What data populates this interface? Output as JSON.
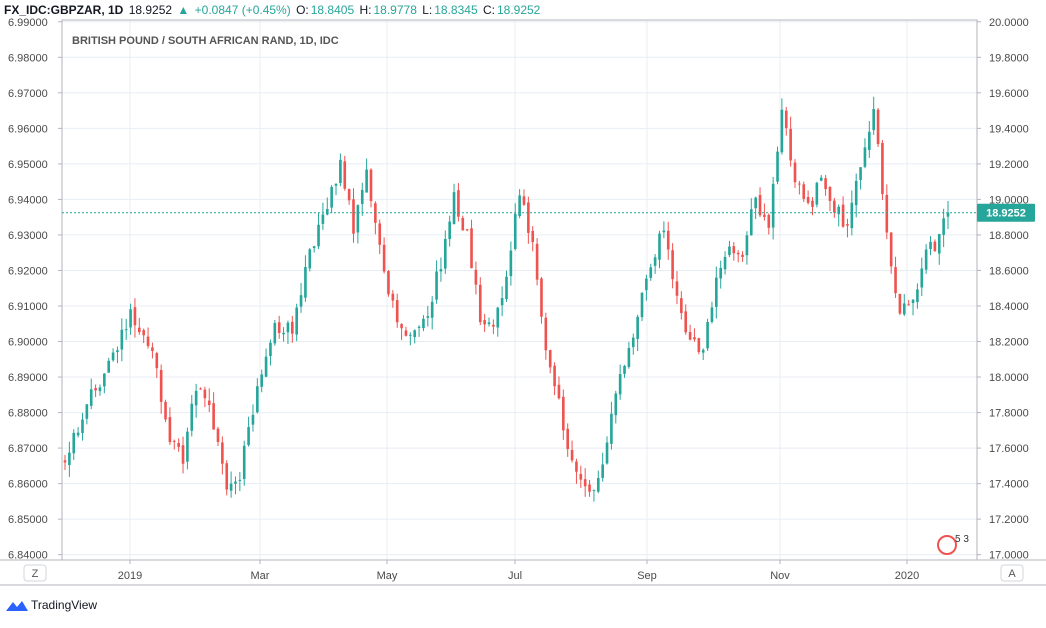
{
  "header": {
    "symbol": "FX_IDC:GBPZAR, 1D",
    "last": "18.9252",
    "change": "+0.0847 (+0.45%)",
    "open_label": "O:",
    "open": "18.8405",
    "high_label": "H:",
    "high": "18.9778",
    "low_label": "L:",
    "low": "18.8345",
    "close_label": "C:",
    "close": "18.9252",
    "up_icon": "triangle-up-icon"
  },
  "chart_data": {
    "type": "candlestick",
    "title": "BRITISH POUND / SOUTH AFRICAN RAND, 1D, IDC",
    "x_ticks": [
      "2019",
      "Mar",
      "May",
      "Jul",
      "Sep",
      "Nov",
      "2020"
    ],
    "left_axis": {
      "range": [
        6.8385,
        6.9905
      ],
      "ticks": [
        "6.99000",
        "6.98000",
        "6.97000",
        "6.96000",
        "6.95000",
        "6.94000",
        "6.93000",
        "6.92000",
        "6.91000",
        "6.90000",
        "6.89000",
        "6.88000",
        "6.87000",
        "6.86000",
        "6.85000",
        "6.84000"
      ]
    },
    "right_axis": {
      "range": [
        16.97,
        20.01
      ],
      "ticks": [
        "20.0000",
        "19.8000",
        "19.6000",
        "19.4000",
        "19.2000",
        "19.0000",
        "18.8000",
        "18.6000",
        "18.4000",
        "18.2000",
        "18.0000",
        "17.8000",
        "17.6000",
        "17.4000",
        "17.2000",
        "17.0000"
      ]
    },
    "last_price": 18.9252,
    "last_price_label": "18.9252",
    "close_path": [
      [
        0,
        17.55
      ],
      [
        5,
        17.85
      ],
      [
        10,
        18.05
      ],
      [
        15,
        18.35
      ],
      [
        20,
        18.15
      ],
      [
        24,
        17.65
      ],
      [
        27,
        17.55
      ],
      [
        30,
        17.95
      ],
      [
        33,
        17.85
      ],
      [
        37,
        17.35
      ],
      [
        40,
        17.45
      ],
      [
        44,
        17.95
      ],
      [
        48,
        18.3
      ],
      [
        52,
        18.25
      ],
      [
        56,
        18.7
      ],
      [
        60,
        18.95
      ],
      [
        63,
        19.2
      ],
      [
        66,
        18.85
      ],
      [
        69,
        19.15
      ],
      [
        72,
        18.7
      ],
      [
        76,
        18.3
      ],
      [
        80,
        18.25
      ],
      [
        83,
        18.35
      ],
      [
        86,
        18.65
      ],
      [
        89,
        19.0
      ],
      [
        92,
        18.8
      ],
      [
        95,
        18.35
      ],
      [
        98,
        18.25
      ],
      [
        101,
        18.6
      ],
      [
        104,
        19.05
      ],
      [
        107,
        18.75
      ],
      [
        110,
        18.15
      ],
      [
        113,
        17.85
      ],
      [
        116,
        17.5
      ],
      [
        119,
        17.35
      ],
      [
        122,
        17.4
      ],
      [
        125,
        17.75
      ],
      [
        128,
        18.1
      ],
      [
        131,
        18.35
      ],
      [
        134,
        18.65
      ],
      [
        137,
        18.85
      ],
      [
        140,
        18.45
      ],
      [
        143,
        18.2
      ],
      [
        146,
        18.15
      ],
      [
        149,
        18.55
      ],
      [
        152,
        18.75
      ],
      [
        155,
        18.7
      ],
      [
        158,
        19.0
      ],
      [
        161,
        18.85
      ],
      [
        164,
        19.5
      ],
      [
        167,
        19.1
      ],
      [
        170,
        18.95
      ],
      [
        173,
        19.1
      ],
      [
        176,
        18.95
      ],
      [
        179,
        18.85
      ],
      [
        182,
        19.2
      ],
      [
        185,
        19.5
      ],
      [
        188,
        18.8
      ],
      [
        191,
        18.35
      ],
      [
        194,
        18.45
      ],
      [
        197,
        18.7
      ],
      [
        200,
        18.78
      ],
      [
        202,
        18.9252
      ]
    ],
    "n_bars": 203,
    "seed": 20191,
    "colors": {
      "up": "#26a69a",
      "down": "#ef5350",
      "grid": "#e8edf4",
      "axis": "#b2b5be",
      "text": "#4a4a4a"
    },
    "grid": true,
    "corner_buttons": {
      "left": "Z",
      "right": "A"
    },
    "badge_text": "5 3"
  },
  "footer": {
    "brand": "TradingView",
    "logo_icon": "tradingview-logo-icon"
  }
}
